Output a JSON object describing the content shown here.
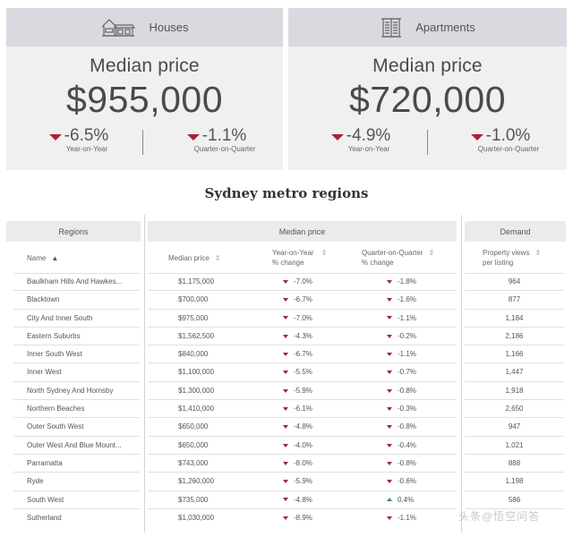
{
  "cards": {
    "houses": {
      "title": "Houses",
      "icon": "house-icon",
      "median_label": "Median price",
      "median_value": "$955,000",
      "yoy": {
        "value": "-6.5%",
        "label": "Year-on-Year",
        "direction": "down"
      },
      "qoq": {
        "value": "-1.1%",
        "label": "Quarter-on-Quarter",
        "direction": "down"
      }
    },
    "apartments": {
      "title": "Apartments",
      "icon": "apartment-building-icon",
      "median_label": "Median price",
      "median_value": "$720,000",
      "yoy": {
        "value": "-4.9%",
        "label": "Year-on-Year",
        "direction": "down"
      },
      "qoq": {
        "value": "-1.0%",
        "label": "Quarter-on-Quarter",
        "direction": "down"
      }
    }
  },
  "table": {
    "title": "Sydney metro regions",
    "groups": {
      "regions": "Regions",
      "median_price": "Median price",
      "demand": "Demand"
    },
    "columns": {
      "name": "Name",
      "median_price": "Median price",
      "yoy_line1": "Year-on-Year",
      "yoy_line2": "% change",
      "qoq_line1": "Quarter-on-Quarter",
      "qoq_line2": "% change",
      "views_line1": "Property views",
      "views_line2": "per listing"
    },
    "sort_icons": {
      "name": "sort-active-icon",
      "others": "sort-icon"
    },
    "colors": {
      "down": "#a8243a",
      "up": "#3a8a6a"
    },
    "rows": [
      {
        "name": "Baulkham Hills And Hawkes...",
        "price": "$1,175,000",
        "yoy": "-7.0%",
        "yoy_dir": "down",
        "qoq": "-1.8%",
        "qoq_dir": "down",
        "views": "964"
      },
      {
        "name": "Blacktown",
        "price": "$700,000",
        "yoy": "-6.7%",
        "yoy_dir": "down",
        "qoq": "-1.6%",
        "qoq_dir": "down",
        "views": "877"
      },
      {
        "name": "City And Inner South",
        "price": "$975,000",
        "yoy": "-7.0%",
        "yoy_dir": "down",
        "qoq": "-1.1%",
        "qoq_dir": "down",
        "views": "1,184"
      },
      {
        "name": "Eastern Suburbs",
        "price": "$1,562,500",
        "yoy": "-4.3%",
        "yoy_dir": "down",
        "qoq": "-0.2%",
        "qoq_dir": "down",
        "views": "2,186"
      },
      {
        "name": "Inner South West",
        "price": "$840,000",
        "yoy": "-6.7%",
        "yoy_dir": "down",
        "qoq": "-1.1%",
        "qoq_dir": "down",
        "views": "1,166"
      },
      {
        "name": "Inner West",
        "price": "$1,100,000",
        "yoy": "-5.5%",
        "yoy_dir": "down",
        "qoq": "-0.7%",
        "qoq_dir": "down",
        "views": "1,447"
      },
      {
        "name": "North Sydney And Hornsby",
        "price": "$1,300,000",
        "yoy": "-5.9%",
        "yoy_dir": "down",
        "qoq": "-0.8%",
        "qoq_dir": "down",
        "views": "1,918"
      },
      {
        "name": "Northern Beaches",
        "price": "$1,410,000",
        "yoy": "-6.1%",
        "yoy_dir": "down",
        "qoq": "-0.3%",
        "qoq_dir": "down",
        "views": "2,650"
      },
      {
        "name": "Outer South West",
        "price": "$650,000",
        "yoy": "-4.8%",
        "yoy_dir": "down",
        "qoq": "-0.8%",
        "qoq_dir": "down",
        "views": "947"
      },
      {
        "name": "Outer West And Blue Mount...",
        "price": "$650,000",
        "yoy": "-4.0%",
        "yoy_dir": "down",
        "qoq": "-0.4%",
        "qoq_dir": "down",
        "views": "1,021"
      },
      {
        "name": "Parramatta",
        "price": "$743,000",
        "yoy": "-8.0%",
        "yoy_dir": "down",
        "qoq": "-0.8%",
        "qoq_dir": "down",
        "views": "888"
      },
      {
        "name": "Ryde",
        "price": "$1,260,000",
        "yoy": "-5.9%",
        "yoy_dir": "down",
        "qoq": "-0.6%",
        "qoq_dir": "down",
        "views": "1,198"
      },
      {
        "name": "South West",
        "price": "$735,000",
        "yoy": "-4.8%",
        "yoy_dir": "down",
        "qoq": "0.4%",
        "qoq_dir": "up",
        "views": "586"
      },
      {
        "name": "Sutherland",
        "price": "$1,030,000",
        "yoy": "-8.9%",
        "yoy_dir": "down",
        "qoq": "-1.1%",
        "qoq_dir": "down",
        "views": ""
      }
    ]
  },
  "watermark": {
    "text": "头条@悟空问答"
  }
}
